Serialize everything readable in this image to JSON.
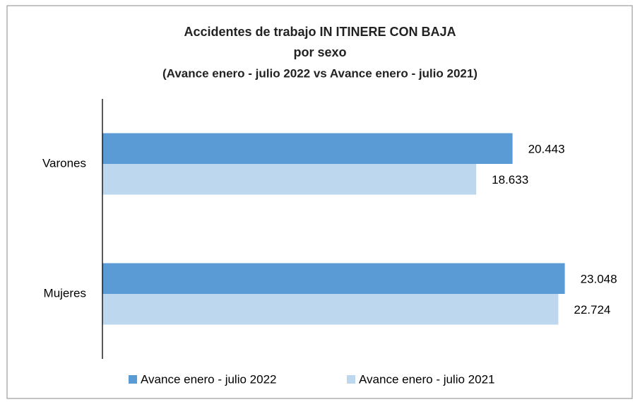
{
  "chart_data": {
    "type": "bar",
    "orientation": "horizontal",
    "title": "Accidentes de trabajo IN ITINERE CON BAJA",
    "title_line2": "por sexo",
    "subtitle": "(Avance enero - julio 2022 vs Avance enero - julio 2021)",
    "categories": [
      "Varones",
      "Mujeres"
    ],
    "series": [
      {
        "name": "Avance enero - julio 2022",
        "color": "#5b9bd5",
        "values": [
          20443,
          23048
        ],
        "value_labels": [
          "20.443",
          "23.048"
        ]
      },
      {
        "name": "Avance enero - julio 2021",
        "color": "#bdd7ee",
        "values": [
          18633,
          22724
        ],
        "value_labels": [
          "18.633",
          "22.724"
        ]
      }
    ],
    "xlim": [
      0,
      25000
    ],
    "legend": "bottom"
  }
}
